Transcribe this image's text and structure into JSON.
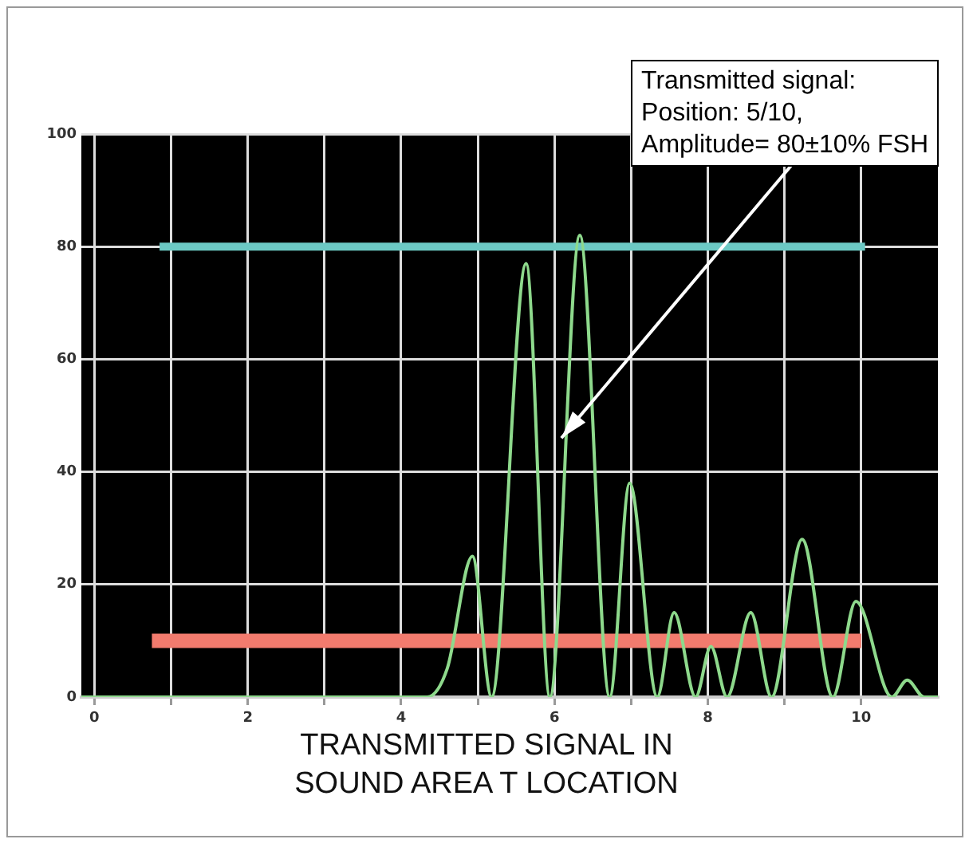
{
  "chart_data": {
    "type": "line",
    "title": "TRANSMITTED SIGNAL IN\nSOUND AREA T LOCATION",
    "series": [
      {
        "color": "#8ed98c",
        "x": [
          -0.17,
          4.34,
          4.6,
          4.93,
          5.18,
          5.63,
          5.94,
          6.33,
          6.72,
          6.98,
          7.34,
          7.56,
          7.84,
          8.04,
          8.25,
          8.56,
          8.83,
          9.23,
          9.63,
          9.93,
          10.4,
          10.6,
          10.82,
          11
        ],
        "values": [
          0,
          0,
          5,
          25,
          0,
          77,
          0,
          82,
          0,
          38,
          0,
          15,
          0,
          9,
          0,
          15,
          0,
          28,
          0,
          17,
          0,
          3,
          0,
          0
        ]
      },
      {
        "color": "#6cc9c4",
        "x": [
          0.85,
          10.05
        ],
        "values": [
          80,
          80
        ]
      },
      {
        "color": "#f27b6e",
        "x": [
          0.75,
          10
        ],
        "values": [
          10,
          10
        ]
      }
    ],
    "xlim": [
      -0.17,
      11
    ],
    "xticks": [
      0,
      {
        "value": 1,
        "label": null
      },
      2,
      {
        "value": 3,
        "label": null
      },
      4,
      {
        "value": 5,
        "label": null
      },
      6,
      {
        "value": 7,
        "label": null
      },
      8,
      {
        "value": 9,
        "label": null
      },
      10
    ],
    "ylim": [
      0,
      100
    ],
    "yticks": [
      0,
      20,
      40,
      60,
      80,
      100
    ],
    "grid": true,
    "marker": "none",
    "annotations": [
      {
        "text": "Transmitted signal:\nPosition: 5/10,\nAmplitude= 80±10% FSH",
        "x": 6.09,
        "y": 46
      }
    ]
  }
}
